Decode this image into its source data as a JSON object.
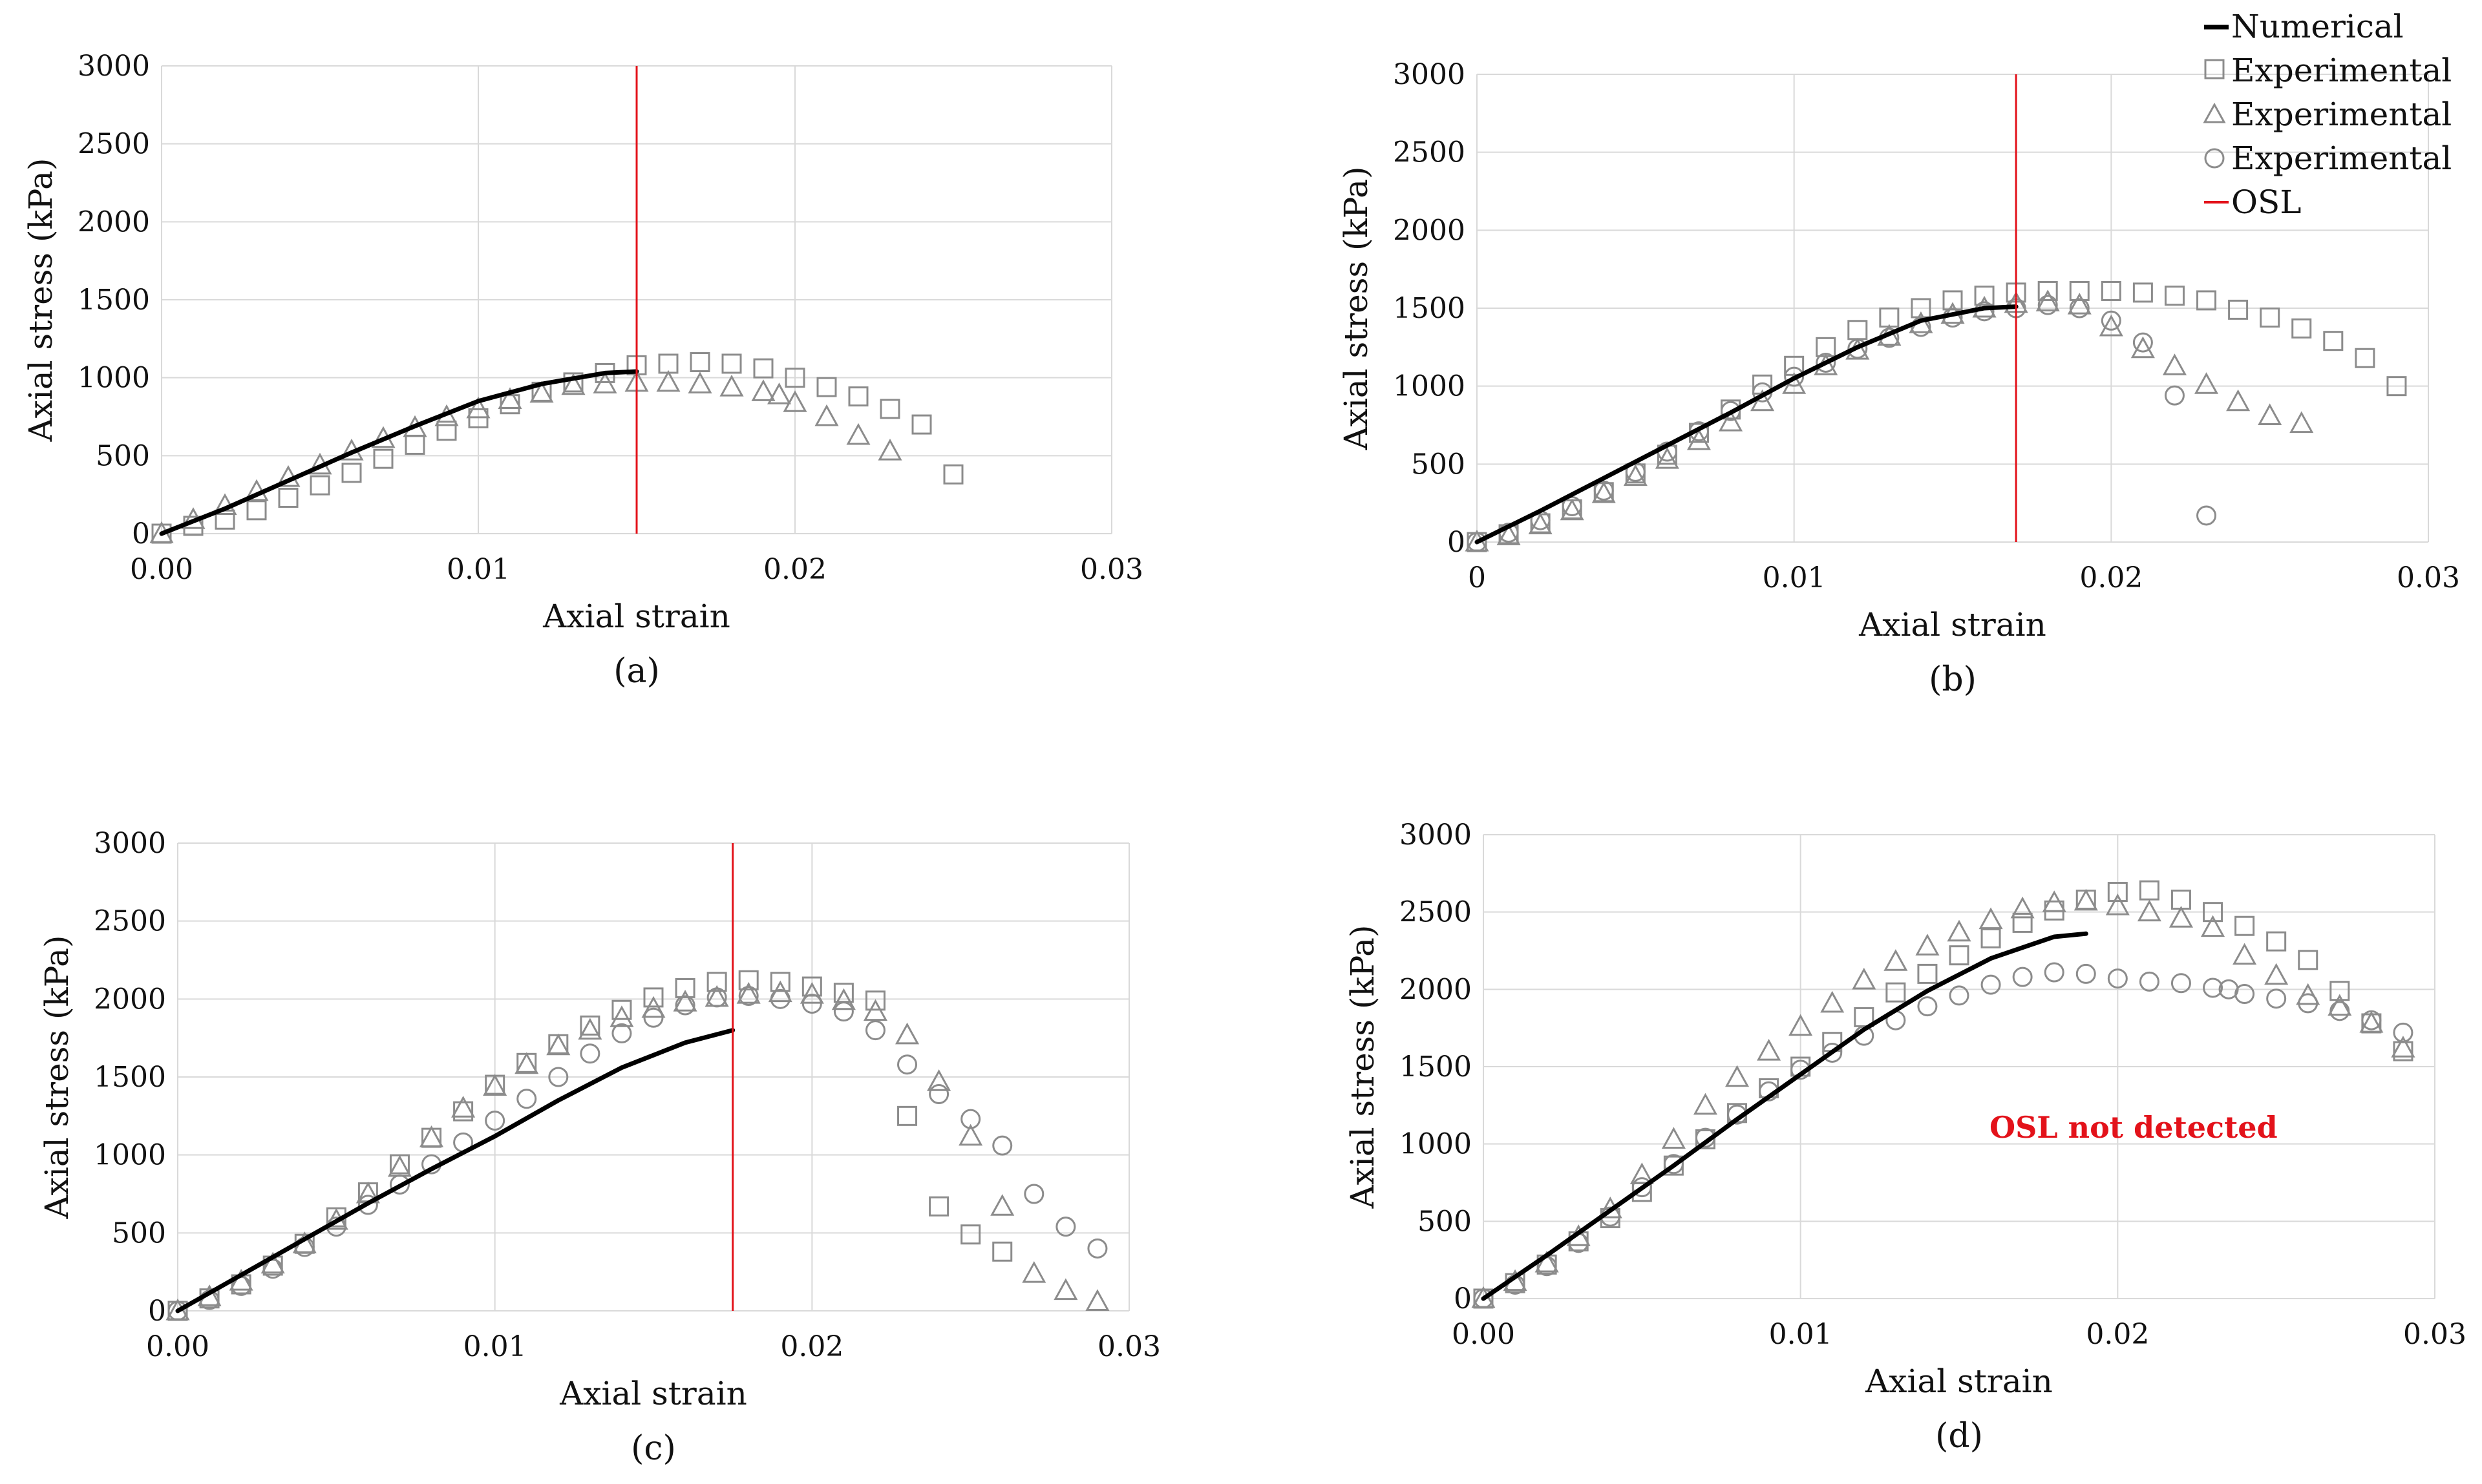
{
  "legend": {
    "numerical": "Numerical",
    "experimental_square": "Experimental",
    "experimental_triangle": "Experimental",
    "experimental_circle": "Experimental",
    "osl": "OSL"
  },
  "colors": {
    "numerical": "#000000",
    "experimental": "#8c8c8c",
    "osl": "#e3121a",
    "grid": "#d9d9d9",
    "note": "#e3121a"
  },
  "chart_data": [
    {
      "id": "a",
      "type": "scatter",
      "caption": "(a)",
      "xlabel": "Axial strain",
      "ylabel": "Axial stress (kPa)",
      "xlim": [
        0,
        0.03
      ],
      "ylim": [
        0,
        3000
      ],
      "x_ticks": [
        "0.00",
        "0.01",
        "0.02",
        "0.03"
      ],
      "y_ticks": [
        "0",
        "500",
        "1000",
        "1500",
        "2000",
        "2500",
        "3000"
      ],
      "osl_strain": 0.015,
      "note": "",
      "numerical": {
        "x": [
          0,
          0.002,
          0.004,
          0.006,
          0.008,
          0.01,
          0.012,
          0.014,
          0.015
        ],
        "y": [
          0,
          160,
          340,
          520,
          690,
          850,
          960,
          1030,
          1040
        ]
      },
      "series_square": {
        "x": [
          0,
          0.001,
          0.002,
          0.003,
          0.004,
          0.005,
          0.006,
          0.007,
          0.008,
          0.009,
          0.01,
          0.011,
          0.012,
          0.013,
          0.014,
          0.015,
          0.016,
          0.017,
          0.018,
          0.019,
          0.02,
          0.021,
          0.022,
          0.023,
          0.024,
          0.025
        ],
        "y": [
          0,
          50,
          90,
          150,
          230,
          310,
          390,
          480,
          570,
          660,
          740,
          830,
          910,
          970,
          1030,
          1080,
          1090,
          1100,
          1090,
          1060,
          1000,
          940,
          880,
          800,
          700,
          380
        ]
      },
      "series_triangle": {
        "x": [
          0,
          0.001,
          0.002,
          0.003,
          0.004,
          0.005,
          0.006,
          0.007,
          0.008,
          0.009,
          0.01,
          0.011,
          0.012,
          0.013,
          0.014,
          0.015,
          0.016,
          0.017,
          0.018,
          0.019,
          0.0195,
          0.02,
          0.021,
          0.022,
          0.023
        ],
        "y": [
          0,
          90,
          180,
          270,
          360,
          440,
          530,
          610,
          680,
          750,
          800,
          860,
          900,
          950,
          960,
          970,
          970,
          960,
          940,
          910,
          890,
          840,
          750,
          630,
          530
        ]
      },
      "series_circle": {
        "x": [],
        "y": []
      }
    },
    {
      "id": "b",
      "type": "scatter",
      "caption": "(b)",
      "xlabel": "Axial strain",
      "ylabel": "Axial stress (kPa)",
      "xlim": [
        0,
        0.03
      ],
      "ylim": [
        0,
        3000
      ],
      "x_ticks": [
        "0",
        "0.01",
        "0.02",
        "0.03"
      ],
      "y_ticks": [
        "0",
        "500",
        "1000",
        "1500",
        "2000",
        "2500",
        "3000"
      ],
      "osl_strain": 0.017,
      "note": "",
      "numerical": {
        "x": [
          0,
          0.002,
          0.004,
          0.006,
          0.008,
          0.01,
          0.012,
          0.014,
          0.016,
          0.017
        ],
        "y": [
          0,
          200,
          410,
          620,
          830,
          1050,
          1250,
          1420,
          1500,
          1510
        ]
      },
      "series_square": {
        "x": [
          0,
          0.001,
          0.002,
          0.003,
          0.004,
          0.005,
          0.006,
          0.007,
          0.008,
          0.009,
          0.01,
          0.011,
          0.012,
          0.013,
          0.014,
          0.015,
          0.016,
          0.017,
          0.018,
          0.019,
          0.02,
          0.021,
          0.022,
          0.023,
          0.024,
          0.025,
          0.026,
          0.027,
          0.028,
          0.029
        ],
        "y": [
          0,
          50,
          120,
          210,
          320,
          440,
          560,
          700,
          850,
          1010,
          1130,
          1250,
          1360,
          1440,
          1500,
          1550,
          1580,
          1600,
          1610,
          1610,
          1610,
          1600,
          1580,
          1550,
          1490,
          1440,
          1370,
          1290,
          1180,
          1000
        ]
      },
      "series_triangle": {
        "x": [
          0,
          0.001,
          0.002,
          0.003,
          0.004,
          0.005,
          0.006,
          0.007,
          0.008,
          0.009,
          0.01,
          0.011,
          0.012,
          0.013,
          0.014,
          0.015,
          0.016,
          0.017,
          0.018,
          0.019,
          0.02,
          0.021,
          0.022,
          0.023,
          0.024,
          0.025,
          0.026
        ],
        "y": [
          0,
          40,
          110,
          200,
          310,
          420,
          530,
          650,
          770,
          900,
          1010,
          1130,
          1230,
          1320,
          1400,
          1460,
          1500,
          1530,
          1540,
          1520,
          1380,
          1240,
          1130,
          1010,
          900,
          810,
          760
        ]
      },
      "series_circle": {
        "x": [
          0,
          0.001,
          0.002,
          0.003,
          0.004,
          0.005,
          0.006,
          0.007,
          0.008,
          0.009,
          0.01,
          0.011,
          0.012,
          0.013,
          0.014,
          0.015,
          0.016,
          0.017,
          0.018,
          0.019,
          0.02,
          0.021,
          0.022,
          0.023
        ],
        "y": [
          0,
          60,
          140,
          230,
          330,
          450,
          580,
          710,
          840,
          960,
          1060,
          1150,
          1240,
          1310,
          1380,
          1440,
          1480,
          1500,
          1520,
          1500,
          1420,
          1280,
          940,
          170
        ]
      }
    },
    {
      "id": "c",
      "type": "scatter",
      "caption": "(c)",
      "xlabel": "Axial strain",
      "ylabel": "Axial stress (kPa)",
      "xlim": [
        0,
        0.03
      ],
      "ylim": [
        0,
        3000
      ],
      "x_ticks": [
        "0.00",
        "0.01",
        "0.02",
        "0.03"
      ],
      "y_ticks": [
        "0",
        "500",
        "1000",
        "1500",
        "2000",
        "2500",
        "3000"
      ],
      "osl_strain": 0.0175,
      "note": "",
      "numerical": {
        "x": [
          0,
          0.002,
          0.004,
          0.006,
          0.008,
          0.01,
          0.012,
          0.014,
          0.016,
          0.0175
        ],
        "y": [
          0,
          230,
          460,
          690,
          910,
          1120,
          1350,
          1560,
          1720,
          1800
        ]
      },
      "series_square": {
        "x": [
          0,
          0.001,
          0.002,
          0.003,
          0.004,
          0.005,
          0.006,
          0.007,
          0.008,
          0.009,
          0.01,
          0.011,
          0.012,
          0.013,
          0.014,
          0.015,
          0.016,
          0.017,
          0.018,
          0.019,
          0.02,
          0.021,
          0.022,
          0.023,
          0.024,
          0.025,
          0.026
        ],
        "y": [
          0,
          80,
          170,
          290,
          430,
          600,
          760,
          940,
          1110,
          1280,
          1450,
          1590,
          1710,
          1830,
          1930,
          2010,
          2070,
          2110,
          2120,
          2110,
          2080,
          2040,
          1990,
          1250,
          670,
          490,
          380
        ]
      },
      "series_triangle": {
        "x": [
          0,
          0.001,
          0.002,
          0.003,
          0.004,
          0.005,
          0.006,
          0.007,
          0.008,
          0.009,
          0.01,
          0.011,
          0.012,
          0.013,
          0.014,
          0.015,
          0.016,
          0.017,
          0.018,
          0.019,
          0.02,
          0.021,
          0.022,
          0.023,
          0.024,
          0.025,
          0.026,
          0.027,
          0.028,
          0.029
        ],
        "y": [
          0,
          90,
          190,
          300,
          430,
          580,
          750,
          920,
          1110,
          1300,
          1440,
          1580,
          1700,
          1800,
          1880,
          1940,
          1980,
          2010,
          2030,
          2040,
          2030,
          1990,
          1920,
          1770,
          1470,
          1120,
          670,
          240,
          130,
          60
        ]
      },
      "series_circle": {
        "x": [
          0,
          0.001,
          0.002,
          0.003,
          0.004,
          0.005,
          0.006,
          0.007,
          0.008,
          0.009,
          0.01,
          0.011,
          0.012,
          0.013,
          0.014,
          0.015,
          0.016,
          0.017,
          0.018,
          0.019,
          0.02,
          0.021,
          0.022,
          0.023,
          0.024,
          0.025,
          0.026,
          0.027,
          0.028,
          0.029
        ],
        "y": [
          0,
          70,
          160,
          270,
          410,
          540,
          680,
          810,
          940,
          1080,
          1220,
          1360,
          1500,
          1650,
          1780,
          1880,
          1960,
          2010,
          2020,
          2000,
          1970,
          1920,
          1800,
          1580,
          1390,
          1230,
          1060,
          750,
          540,
          400
        ]
      }
    },
    {
      "id": "d",
      "type": "scatter",
      "caption": "(d)",
      "xlabel": "Axial strain",
      "ylabel": "Axial stress (kPa)",
      "xlim": [
        0,
        0.03
      ],
      "ylim": [
        0,
        3000
      ],
      "x_ticks": [
        "0.00",
        "0.01",
        "0.02",
        "0.03"
      ],
      "y_ticks": [
        "0",
        "500",
        "1000",
        "1500",
        "2000",
        "2500",
        "3000"
      ],
      "osl_strain": null,
      "note": "OSL not detected",
      "numerical": {
        "x": [
          0,
          0.002,
          0.004,
          0.006,
          0.008,
          0.01,
          0.012,
          0.014,
          0.016,
          0.018,
          0.019
        ],
        "y": [
          0,
          280,
          570,
          860,
          1160,
          1450,
          1740,
          1990,
          2200,
          2340,
          2360
        ]
      },
      "series_square": {
        "x": [
          0,
          0.001,
          0.002,
          0.003,
          0.004,
          0.005,
          0.006,
          0.007,
          0.008,
          0.009,
          0.01,
          0.011,
          0.012,
          0.013,
          0.014,
          0.015,
          0.016,
          0.017,
          0.018,
          0.019,
          0.02,
          0.021,
          0.022,
          0.023,
          0.024,
          0.025,
          0.026,
          0.027,
          0.028,
          0.029
        ],
        "y": [
          0,
          100,
          220,
          370,
          520,
          690,
          860,
          1030,
          1200,
          1360,
          1500,
          1660,
          1820,
          1980,
          2100,
          2220,
          2330,
          2430,
          2510,
          2580,
          2630,
          2640,
          2580,
          2500,
          2410,
          2310,
          2190,
          1990,
          1780,
          1600
        ]
      },
      "series_triangle": {
        "x": [
          0,
          0.001,
          0.002,
          0.003,
          0.004,
          0.005,
          0.006,
          0.007,
          0.008,
          0.009,
          0.01,
          0.011,
          0.012,
          0.013,
          0.014,
          0.015,
          0.016,
          0.017,
          0.018,
          0.019,
          0.02,
          0.021,
          0.022,
          0.023,
          0.024,
          0.025,
          0.026,
          0.027,
          0.028,
          0.029
        ],
        "y": [
          0,
          110,
          230,
          400,
          580,
          800,
          1030,
          1250,
          1430,
          1600,
          1760,
          1910,
          2060,
          2180,
          2280,
          2370,
          2450,
          2520,
          2560,
          2570,
          2540,
          2500,
          2460,
          2400,
          2220,
          2090,
          1960,
          1890,
          1780,
          1620
        ]
      },
      "series_circle": {
        "x": [
          0,
          0.001,
          0.002,
          0.003,
          0.004,
          0.005,
          0.006,
          0.007,
          0.008,
          0.009,
          0.01,
          0.011,
          0.012,
          0.013,
          0.014,
          0.015,
          0.016,
          0.017,
          0.018,
          0.019,
          0.02,
          0.021,
          0.022,
          0.023,
          0.0235,
          0.024,
          0.025,
          0.026,
          0.027,
          0.028,
          0.029
        ],
        "y": [
          0,
          90,
          210,
          360,
          530,
          720,
          870,
          1040,
          1190,
          1340,
          1480,
          1590,
          1700,
          1800,
          1890,
          1960,
          2030,
          2080,
          2110,
          2100,
          2070,
          2050,
          2040,
          2010,
          2000,
          1970,
          1940,
          1910,
          1860,
          1800,
          1720
        ]
      }
    }
  ]
}
